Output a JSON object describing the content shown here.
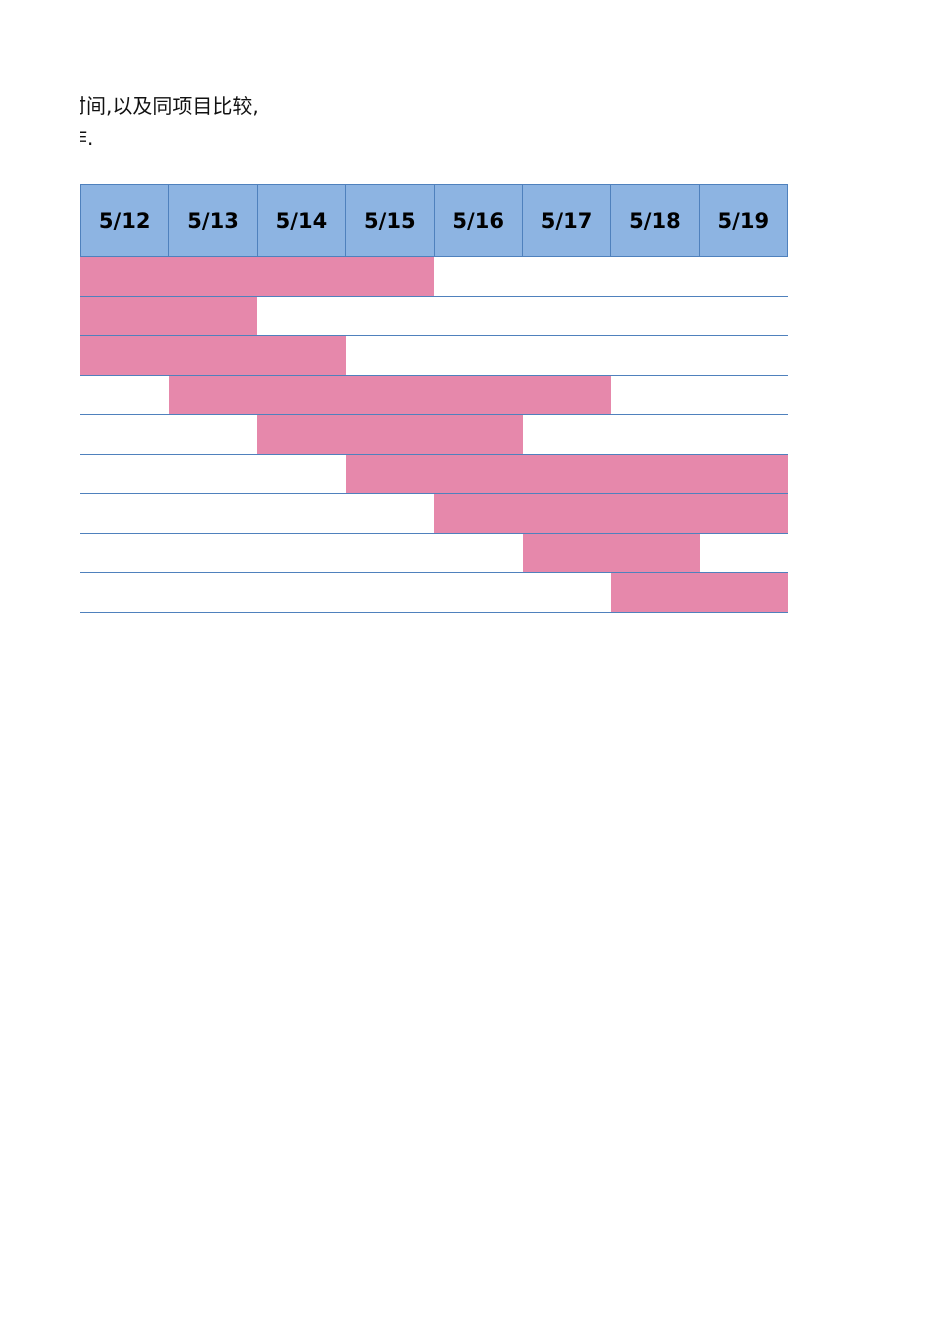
{
  "text": {
    "line1": "时间,以及同项目比较,",
    "line2": "作."
  },
  "gantt": {
    "dates": [
      "5/12",
      "5/13",
      "5/14",
      "5/15",
      "5/16",
      "5/17",
      "5/18",
      "5/19"
    ],
    "bar_color": "#e688ab",
    "header_color": "#8db4e2",
    "rows": [
      {
        "start": "5/12",
        "end": "5/15"
      },
      {
        "start": "5/12",
        "end": "5/13"
      },
      {
        "start": "5/12",
        "end": "5/14"
      },
      {
        "start": "5/13",
        "end": "5/17"
      },
      {
        "start": "5/14",
        "end": "5/16"
      },
      {
        "start": "5/15",
        "end": "5/19"
      },
      {
        "start": "5/16",
        "end": "5/19"
      },
      {
        "start": "5/17",
        "end": "5/18"
      },
      {
        "start": "5/18",
        "end": "5/19"
      }
    ]
  }
}
